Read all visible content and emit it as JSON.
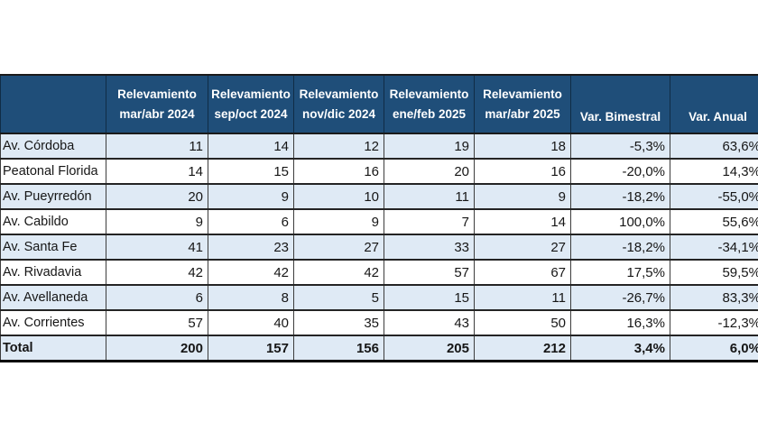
{
  "colors": {
    "header_background": "#1f4e79",
    "header_text": "#ffffff",
    "stripe_row_background": "#dfeaf5",
    "plain_row_background": "#ffffff",
    "grid_line": "#242424",
    "body_text": "#161616"
  },
  "chart_data": {
    "type": "table",
    "title": "",
    "columns": [
      {
        "name": "corner-header",
        "lines": []
      },
      {
        "name": "column-header-relevamiento-mar-abr-2024",
        "lines": [
          "Relevamiento",
          "mar/abr 2024"
        ]
      },
      {
        "name": "column-header-relevamiento-sep-oct-2024",
        "lines": [
          "Relevamiento",
          "sep/oct 2024"
        ]
      },
      {
        "name": "column-header-relevamiento-nov-dic-2024",
        "lines": [
          "Relevamiento",
          "nov/dic 2024"
        ]
      },
      {
        "name": "column-header-relevamiento-ene-feb-2025",
        "lines": [
          "Relevamiento",
          "ene/feb 2025"
        ]
      },
      {
        "name": "column-header-relevamiento-mar-abr-2025",
        "lines": [
          "Relevamiento",
          "mar/abr 2025"
        ]
      },
      {
        "name": "column-header-var-bimestral",
        "lines": [
          "Var. Bimestral"
        ]
      },
      {
        "name": "column-header-var-anual",
        "lines": [
          "Var. Anual"
        ]
      }
    ],
    "rows": [
      {
        "label": "Av. Córdoba",
        "values": [
          "11",
          "14",
          "12",
          "19",
          "18",
          "-5,3%",
          "63,6%"
        ]
      },
      {
        "label": "Peatonal Florida",
        "values": [
          "14",
          "15",
          "16",
          "20",
          "16",
          "-20,0%",
          "14,3%"
        ]
      },
      {
        "label": "Av. Pueyrredón",
        "values": [
          "20",
          "9",
          "10",
          "11",
          "9",
          "-18,2%",
          "-55,0%"
        ]
      },
      {
        "label": "Av. Cabildo",
        "values": [
          "9",
          "6",
          "9",
          "7",
          "14",
          "100,0%",
          "55,6%"
        ]
      },
      {
        "label": "Av. Santa Fe",
        "values": [
          "41",
          "23",
          "27",
          "33",
          "27",
          "-18,2%",
          "-34,1%"
        ]
      },
      {
        "label": "Av. Rivadavia",
        "values": [
          "42",
          "42",
          "42",
          "57",
          "67",
          "17,5%",
          "59,5%"
        ]
      },
      {
        "label": "Av. Avellaneda",
        "values": [
          "6",
          "8",
          "5",
          "15",
          "11",
          "-26,7%",
          "83,3%"
        ]
      },
      {
        "label": "Av. Corrientes",
        "values": [
          "57",
          "40",
          "35",
          "43",
          "50",
          "16,3%",
          "-12,3%"
        ]
      }
    ],
    "total_row": {
      "label": "Total",
      "values": [
        "200",
        "157",
        "156",
        "205",
        "212",
        "3,4%",
        "6,0%"
      ]
    }
  }
}
